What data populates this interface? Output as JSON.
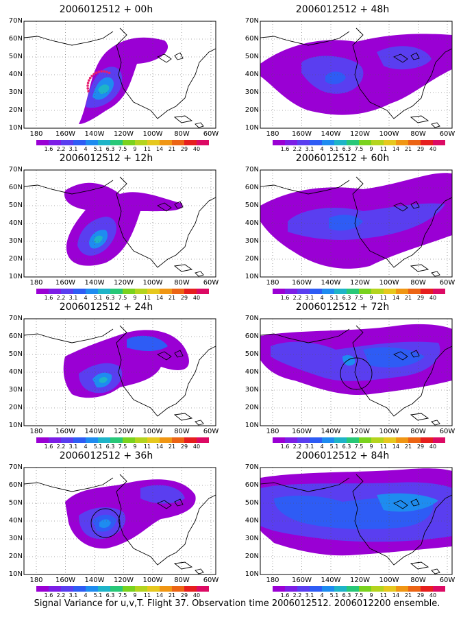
{
  "caption": "Signal Variance for u,v,T. Flight 37. Observation time 2006012512. 2006012200 ensemble.",
  "lat_labels": [
    "70N",
    "60N",
    "50N",
    "40N",
    "30N",
    "20N",
    "10N"
  ],
  "lon_labels": [
    "180",
    "160W",
    "140W",
    "120W",
    "100W",
    "80W",
    "60W"
  ],
  "colorbar": {
    "colors": [
      "#9a00d4",
      "#7c1ee6",
      "#5a3ef0",
      "#2e5cf5",
      "#1e8cf0",
      "#1eb4c8",
      "#28c878",
      "#7ad21e",
      "#b4d41e",
      "#e6c81e",
      "#f09614",
      "#ec6414",
      "#e61e1e",
      "#dc0a64"
    ],
    "labels": [
      "1.6",
      "2.2",
      "3.1",
      "4",
      "5.1",
      "6.3",
      "7.5",
      "9",
      "11",
      "14",
      "21",
      "29",
      "40"
    ]
  },
  "panels": [
    {
      "title": "2006012512 + 00h"
    },
    {
      "title": "2006012512 + 48h"
    },
    {
      "title": "2006012512 + 12h"
    },
    {
      "title": "2006012512 + 60h"
    },
    {
      "title": "2006012512 + 24h"
    },
    {
      "title": "2006012512 + 72h"
    },
    {
      "title": "2006012512 + 36h"
    },
    {
      "title": "2006012512 + 84h"
    }
  ]
}
